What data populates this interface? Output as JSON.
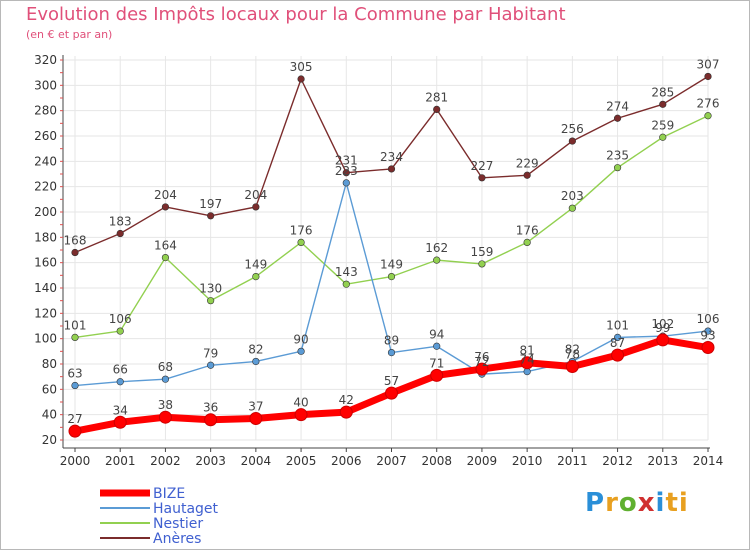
{
  "header": {
    "title": "Evolution des Impôts locaux pour la Commune par Habitant",
    "subtitle": "(en € et par an)"
  },
  "logo": {
    "text": "Proxiti"
  },
  "colors": {
    "bize": "#ff0000",
    "hautaget": "#5b9bd5",
    "nestier": "#92d050",
    "aneres": "#7b2c2c",
    "axis": "#444444",
    "grid": "#e6e6e6",
    "title": "#e0507a"
  },
  "chart_data": {
    "type": "line",
    "x": [
      "2000",
      "2001",
      "2002",
      "2003",
      "2004",
      "2005",
      "2006",
      "2007",
      "2008",
      "2009",
      "2010",
      "2011",
      "2012",
      "2013",
      "2014"
    ],
    "ylim": [
      20,
      320
    ],
    "yticks": [
      20,
      40,
      60,
      80,
      100,
      120,
      140,
      160,
      180,
      200,
      220,
      240,
      260,
      280,
      300,
      320
    ],
    "grid": true,
    "legend_position": "bottom-left",
    "series": [
      {
        "name": "BIZE",
        "color": "#ff0000",
        "values": [
          27,
          34,
          38,
          36,
          37,
          40,
          42,
          57,
          71,
          76,
          81,
          78,
          87,
          99,
          93
        ],
        "labels": [
          "27",
          "34",
          "38",
          "36",
          "37",
          "40",
          "42",
          "57",
          "71",
          "76",
          "81",
          "78",
          "87",
          "99",
          "93"
        ]
      },
      {
        "name": "Hautaget",
        "color": "#5b9bd5",
        "values": [
          63,
          66,
          68,
          79,
          82,
          90,
          223,
          89,
          94,
          72,
          74,
          82,
          101,
          102,
          106
        ],
        "labels": [
          "63",
          "66",
          "68",
          "79",
          "82",
          "90",
          "223",
          "89",
          "94",
          "72",
          "74",
          "82",
          "101",
          "102",
          "106"
        ]
      },
      {
        "name": "Nestier",
        "color": "#92d050",
        "values": [
          101,
          106,
          164,
          130,
          149,
          176,
          143,
          149,
          162,
          159,
          176,
          203,
          235,
          259,
          276
        ],
        "labels": [
          "101",
          "106",
          "164",
          "130",
          "149",
          "176",
          "143",
          "149",
          "162",
          "159",
          "176",
          "203",
          "235",
          "259",
          "276"
        ]
      },
      {
        "name": "Anères",
        "color": "#7b2c2c",
        "values": [
          168,
          183,
          204,
          197,
          204,
          305,
          231,
          234,
          281,
          227,
          229,
          256,
          274,
          285,
          307
        ],
        "labels": [
          "168",
          "183",
          "204",
          "197",
          "204",
          "305",
          "231",
          "234",
          "281",
          "227",
          "229",
          "256",
          "274",
          "285",
          "307"
        ]
      }
    ]
  }
}
